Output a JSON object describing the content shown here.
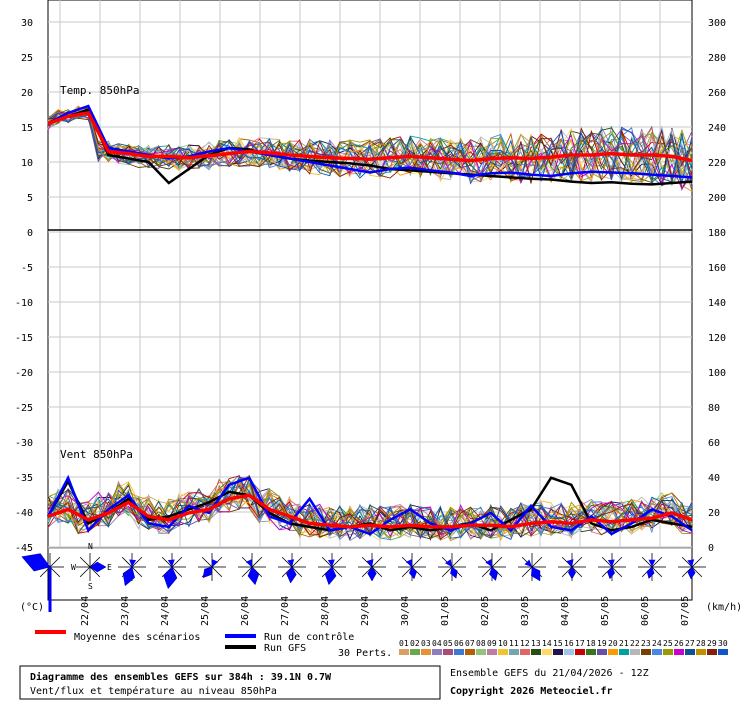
{
  "chart_data": [
    {
      "type": "line",
      "panel": "temperature",
      "label": "Temp. 850hPa",
      "y_left_ticks": [
        "30",
        "25",
        "20",
        "15",
        "10",
        "5",
        "0"
      ],
      "y_right_ticks": [
        "300",
        "280",
        "260",
        "240",
        "220",
        "200"
      ],
      "y_left_range": [
        0,
        30
      ],
      "x_range_hours": [
        0,
        384
      ],
      "series": [
        {
          "name": "Moyenne des scénarios",
          "color": "#ff0000",
          "x": [
            0,
            12,
            24,
            36,
            48,
            60,
            72,
            84,
            96,
            108,
            120,
            132,
            144,
            156,
            168,
            180,
            192,
            204,
            216,
            228,
            240,
            252,
            264,
            276,
            288,
            300,
            312,
            324,
            336,
            348,
            360,
            372,
            384
          ],
          "y": [
            15.5,
            16.5,
            17,
            11.5,
            11.2,
            10.8,
            10.8,
            10.6,
            10.9,
            11.2,
            11.5,
            11.3,
            11,
            10.8,
            10.6,
            10.5,
            10.4,
            10.6,
            10.8,
            10.6,
            10.4,
            10.2,
            10.5,
            10.6,
            10.5,
            10.7,
            11,
            11,
            11.2,
            11,
            11,
            10.8,
            10.2
          ]
        },
        {
          "name": "Run de contrôle",
          "color": "#0000ff",
          "x": [
            0,
            12,
            24,
            36,
            48,
            60,
            72,
            84,
            96,
            108,
            120,
            132,
            144,
            156,
            168,
            180,
            192,
            204,
            216,
            228,
            240,
            252,
            264,
            276,
            288,
            300,
            312,
            324,
            336,
            348,
            360,
            372,
            384
          ],
          "y": [
            15.5,
            17,
            18,
            12,
            11.5,
            11,
            10.5,
            10.8,
            11.5,
            12,
            11.5,
            11,
            10.5,
            10,
            9.5,
            9,
            8.5,
            9,
            9.2,
            8.8,
            8.5,
            8,
            8.4,
            8.5,
            8.2,
            8,
            8.4,
            8.6,
            8.5,
            8.4,
            8.2,
            8,
            7.8
          ]
        },
        {
          "name": "Run GFS",
          "color": "#000000",
          "x": [
            0,
            12,
            24,
            36,
            48,
            60,
            72,
            84,
            96,
            108,
            120,
            132,
            144,
            156,
            168,
            180,
            192,
            204,
            216,
            228,
            240,
            252,
            264,
            276,
            288,
            300,
            312,
            324,
            336,
            348,
            360,
            372,
            384
          ],
          "y": [
            15.5,
            16.5,
            17.5,
            11,
            10.5,
            10,
            7,
            9,
            11,
            12,
            11.8,
            11,
            10.5,
            10.2,
            10,
            9.8,
            9.5,
            9,
            8.8,
            8.6,
            8.4,
            8.2,
            8,
            7.8,
            7.6,
            7.5,
            7.2,
            7,
            7.1,
            6.9,
            6.8,
            7,
            7.2
          ]
        }
      ]
    },
    {
      "type": "line",
      "panel": "wind",
      "label": "Vent 850hPa",
      "y_left_ticks": [
        "-5",
        "-10",
        "-15",
        "-20",
        "-25",
        "-30",
        "-35",
        "-40",
        "-45"
      ],
      "y_right_ticks": [
        "180",
        "160",
        "140",
        "120",
        "100",
        "80",
        "60",
        "40",
        "20",
        "0"
      ],
      "y_right_range": [
        0,
        180
      ],
      "y_right_unit": "(km/h)",
      "series": [
        {
          "name": "Moyenne des scénarios",
          "color": "#ff0000",
          "x": [
            0,
            12,
            24,
            36,
            48,
            60,
            72,
            84,
            96,
            108,
            120,
            132,
            144,
            156,
            168,
            180,
            192,
            204,
            216,
            228,
            240,
            252,
            264,
            276,
            288,
            300,
            312,
            324,
            336,
            348,
            360,
            372,
            384
          ],
          "y": [
            18,
            22,
            16,
            20,
            26,
            18,
            16,
            20,
            22,
            28,
            30,
            22,
            18,
            14,
            13,
            12,
            13,
            12,
            13,
            12,
            12,
            13,
            13,
            12,
            14,
            15,
            14,
            16,
            15,
            16,
            17,
            20,
            16
          ]
        },
        {
          "name": "Run de contrôle",
          "color": "#0000ff",
          "x": [
            0,
            12,
            24,
            36,
            48,
            60,
            72,
            84,
            96,
            108,
            120,
            132,
            144,
            156,
            168,
            180,
            192,
            204,
            216,
            228,
            240,
            252,
            264,
            276,
            288,
            300,
            312,
            324,
            336,
            348,
            360,
            372,
            384
          ],
          "y": [
            18,
            40,
            10,
            22,
            30,
            14,
            12,
            24,
            20,
            36,
            40,
            18,
            14,
            28,
            10,
            12,
            8,
            16,
            22,
            14,
            10,
            14,
            20,
            10,
            24,
            12,
            10,
            18,
            8,
            14,
            22,
            18,
            10
          ]
        },
        {
          "name": "Run GFS",
          "color": "#000000",
          "x": [
            0,
            12,
            24,
            36,
            48,
            60,
            72,
            84,
            96,
            108,
            120,
            132,
            144,
            156,
            168,
            180,
            192,
            204,
            216,
            228,
            240,
            252,
            264,
            276,
            288,
            300,
            312,
            324,
            336,
            348,
            360,
            372,
            384
          ],
          "y": [
            18,
            38,
            14,
            20,
            28,
            16,
            18,
            22,
            26,
            32,
            30,
            20,
            14,
            12,
            10,
            12,
            14,
            10,
            12,
            10,
            12,
            14,
            10,
            16,
            22,
            40,
            36,
            14,
            10,
            12,
            16,
            14,
            12
          ]
        }
      ]
    }
  ],
  "x_labels": [
    "22/04",
    "23/04",
    "24/04",
    "25/04",
    "26/04",
    "27/04",
    "28/04",
    "29/04",
    "30/04",
    "01/05",
    "02/05",
    "03/05",
    "04/05",
    "05/05",
    "06/05",
    "07/05"
  ],
  "bottom_left_unit": "(°C)",
  "compass": {
    "n": "N",
    "w": "W",
    "e": "E",
    "s": "S"
  },
  "legend": {
    "mean": "Moyenne des scénarios",
    "control": "Run de contrôle",
    "gfs": "Run GFS",
    "perts": "30 Perts.",
    "pert_numbers": [
      "01",
      "02",
      "03",
      "04",
      "05",
      "06",
      "07",
      "08",
      "09",
      "10",
      "11",
      "12",
      "13",
      "14",
      "15",
      "16",
      "17",
      "18",
      "19",
      "20",
      "21",
      "22",
      "23",
      "24",
      "25",
      "26",
      "27",
      "28",
      "29",
      "30"
    ],
    "pert_colors": [
      "#d9a066",
      "#6aa84f",
      "#e69138",
      "#8e7cc3",
      "#a64d79",
      "#3c78d8",
      "#b45f06",
      "#93c47d",
      "#c27ba0",
      "#f1c232",
      "#76a5af",
      "#e06666",
      "#274e13",
      "#ffd966",
      "#20124d",
      "#9fc5e8",
      "#cc0000",
      "#38761d",
      "#674ea7",
      "#ff9900",
      "#00a0a0",
      "#b7b7b7",
      "#783f04",
      "#4a86e8",
      "#999900",
      "#cc00cc",
      "#0b5394",
      "#bf9000",
      "#85200c",
      "#1155cc"
    ]
  },
  "footer": {
    "title": "Diagramme des ensembles GEFS sur 384h : 39.1N 0.7W",
    "subtitle": "Vent/flux et température au niveau 850hPa",
    "run": "Ensemble GEFS du 21/04/2026 - 12Z",
    "copyright": "Copyright 2026 Meteociel.fr"
  }
}
